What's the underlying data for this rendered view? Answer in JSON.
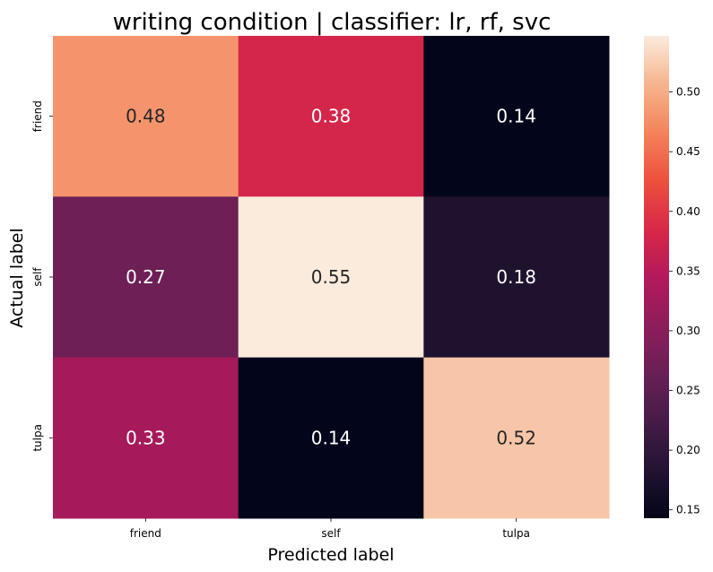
{
  "chart_data": {
    "type": "heatmap",
    "title": "writing condition | classifier: lr, rf, svc",
    "xlabel": "Predicted label",
    "ylabel": "Actual label",
    "x_categories": [
      "friend",
      "self",
      "tulpa"
    ],
    "y_categories": [
      "friend",
      "self",
      "tulpa"
    ],
    "values": [
      [
        0.48,
        0.38,
        0.14
      ],
      [
        0.27,
        0.55,
        0.18
      ],
      [
        0.33,
        0.14,
        0.52
      ]
    ],
    "colorbar": {
      "range": [
        0.143,
        0.547
      ],
      "ticks": [
        0.15,
        0.2,
        0.25,
        0.3,
        0.35,
        0.4,
        0.45,
        0.5
      ],
      "tick_labels": [
        "0.15",
        "0.20",
        "0.25",
        "0.30",
        "0.35",
        "0.40",
        "0.45",
        "0.50"
      ],
      "colormap": "rocket"
    },
    "grid": false
  }
}
